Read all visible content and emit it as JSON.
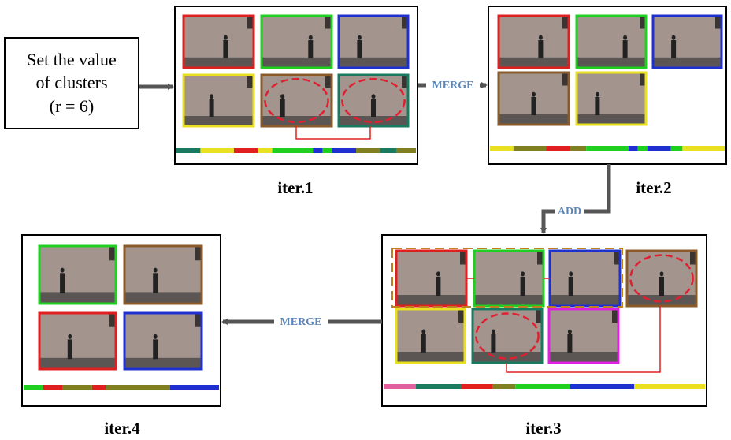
{
  "input_box": {
    "lines": [
      "Set the value",
      "of clusters",
      "(r  = 6)"
    ]
  },
  "arrows": [
    {
      "label": "MERGE"
    },
    {
      "label": "ADD"
    },
    {
      "label": "MERGE"
    }
  ],
  "panels": [
    {
      "label": "iter.1"
    },
    {
      "label": "iter.2"
    },
    {
      "label": "iter.3"
    },
    {
      "label": "iter.4"
    }
  ]
}
